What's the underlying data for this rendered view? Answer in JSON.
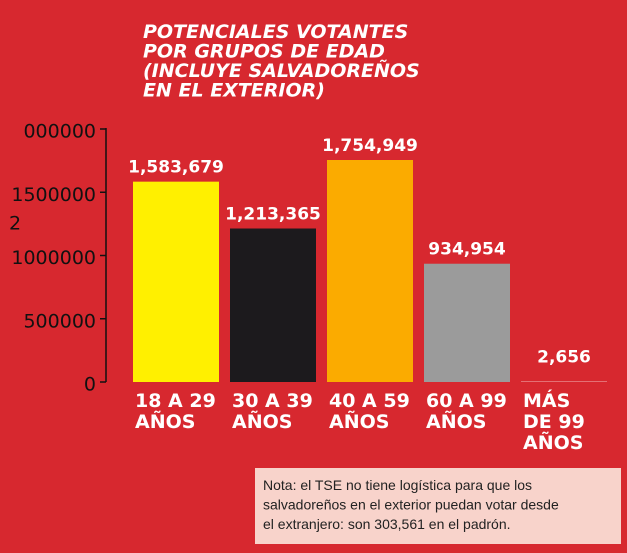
{
  "chart_data": {
    "type": "bar",
    "title": "POTENCIALES VOTANTES\nPOR GRUPOS DE EDAD\n(INCLUYE SALVADOREÑOS\nEN EL EXTERIOR)",
    "categories": [
      "18 A 29\nAÑOS",
      "30 A 39\nAÑOS",
      "40 A 59\nAÑOS",
      "60 A 99\nAÑOS",
      "MÁS\nDE 99\nAÑOS"
    ],
    "values": [
      1583679,
      1213365,
      1754949,
      934954,
      2656
    ],
    "value_labels": [
      "1,583,679",
      "1,213,365",
      "1,754,949",
      "934,954",
      "2,656"
    ],
    "colors": [
      "#fff000",
      "#1c1a1d",
      "#fbab00",
      "#9b9b9b",
      "#ffffff"
    ],
    "ylim": [
      0,
      2000000
    ],
    "yticks": [
      0,
      500000,
      1000000,
      1500000,
      {
        "value": 2000000,
        "label": "000000"
      }
    ],
    "annotations": [
      "2"
    ],
    "note": "Nota: el TSE no tiene logística para que los\nsalvadoreños en el exterior puedan votar desde\nel extranjero: son 303,561 en el padrón."
  }
}
